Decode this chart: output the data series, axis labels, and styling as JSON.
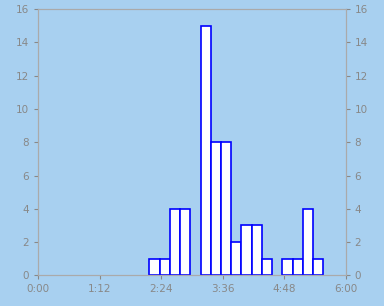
{
  "xlim": [
    0,
    360
  ],
  "ylim": [
    0,
    16
  ],
  "background_color": "#a8d0f0",
  "bar_color": "white",
  "bar_edge_color": "blue",
  "bar_edge_width": 1.2,
  "xtick_labels": [
    "0:00",
    "1:12",
    "2:24",
    "3:36",
    "4:48",
    "6:00"
  ],
  "xtick_positions": [
    0,
    72,
    144,
    216,
    288,
    360
  ],
  "ytick_positions": [
    0,
    2,
    4,
    6,
    8,
    10,
    12,
    14,
    16
  ],
  "tick_color": "#cc6600",
  "bins_minutes": [
    130,
    142,
    154,
    166,
    178,
    190,
    202,
    214,
    226,
    238,
    250,
    262,
    274,
    286,
    298,
    310,
    322
  ],
  "heights": [
    1,
    1,
    4,
    4,
    0,
    15,
    8,
    8,
    2,
    3,
    3,
    1,
    0,
    1,
    1,
    4,
    1
  ],
  "bin_width": 12,
  "figsize": [
    3.84,
    3.06
  ],
  "dpi": 100
}
